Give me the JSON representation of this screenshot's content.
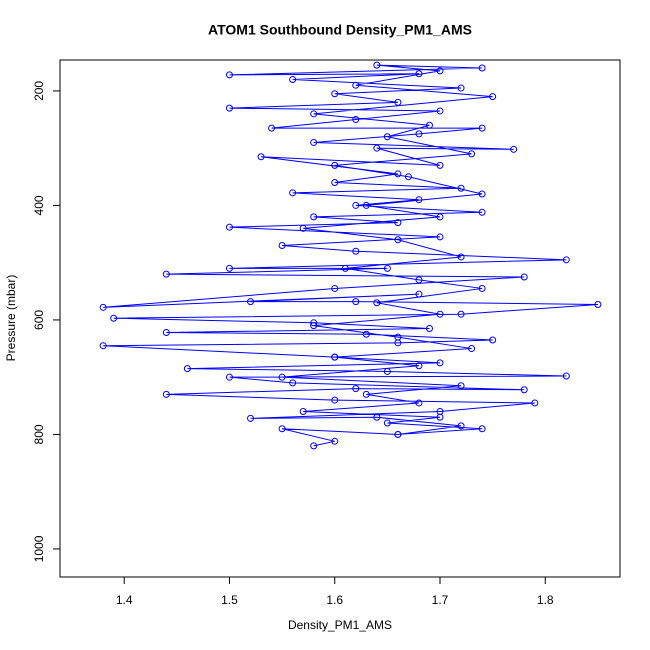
{
  "chart_data": {
    "type": "line",
    "title": "ATOM1 Southbound Density_PM1_AMS",
    "x_label": "Density_PM1_AMS",
    "y_label": "Pressure (mbar)",
    "color": "#0000ff",
    "marker": "circle",
    "xlim": [
      1.339,
      1.871
    ],
    "ylim": [
      1049,
      146
    ],
    "xticks": [
      1.4,
      1.5,
      1.6,
      1.7,
      1.8
    ],
    "yticks": [
      200,
      400,
      600,
      800,
      1000
    ],
    "x": [
      1.58,
      1.6,
      1.55,
      1.66,
      1.72,
      1.64,
      1.52,
      1.7,
      1.79,
      1.6,
      1.44,
      1.62,
      1.78,
      1.56,
      1.5,
      1.82,
      1.65,
      1.46,
      1.7,
      1.6,
      1.38,
      1.66,
      1.75,
      1.63,
      1.44,
      1.69,
      1.58,
      1.39,
      1.72,
      1.85,
      1.62,
      1.52,
      1.68,
      1.38,
      1.6,
      1.78,
      1.44,
      1.65,
      1.5,
      1.82,
      1.62,
      1.55,
      1.7,
      1.5,
      1.66,
      1.58,
      1.74,
      1.62,
      1.68,
      1.56,
      1.72,
      1.6,
      1.66,
      1.53,
      1.7,
      1.64,
      1.77,
      1.58,
      1.68,
      1.74,
      1.54,
      1.62,
      1.7,
      1.5,
      1.66,
      1.6,
      1.72,
      1.56,
      1.68,
      1.5,
      1.74,
      1.64,
      1.7,
      1.62,
      1.75,
      1.58,
      1.69,
      1.65,
      1.73,
      1.6,
      1.67,
      1.74,
      1.63,
      1.7,
      1.57,
      1.66,
      1.72,
      1.61,
      1.68,
      1.74,
      1.64,
      1.7,
      1.58,
      1.66,
      1.73,
      1.6,
      1.68,
      1.55,
      1.72,
      1.63,
      1.68,
      1.57,
      1.7,
      1.65,
      1.74,
      1.66
    ],
    "values": [
      820,
      812,
      790,
      800,
      785,
      770,
      772,
      760,
      745,
      740,
      730,
      720,
      722,
      710,
      700,
      698,
      690,
      685,
      675,
      665,
      645,
      640,
      635,
      625,
      622,
      615,
      605,
      597,
      590,
      573,
      568,
      568,
      555,
      578,
      545,
      525,
      520,
      510,
      510,
      495,
      480,
      470,
      455,
      438,
      430,
      420,
      412,
      400,
      390,
      378,
      370,
      360,
      345,
      315,
      330,
      300,
      302,
      290,
      275,
      265,
      265,
      250,
      235,
      230,
      220,
      205,
      195,
      180,
      170,
      172,
      160,
      155,
      165,
      190,
      210,
      240,
      260,
      280,
      310,
      330,
      350,
      380,
      400,
      420,
      440,
      460,
      490,
      510,
      530,
      545,
      570,
      590,
      610,
      630,
      650,
      665,
      680,
      700,
      715,
      730,
      745,
      760,
      770,
      780,
      790,
      800
    ]
  }
}
